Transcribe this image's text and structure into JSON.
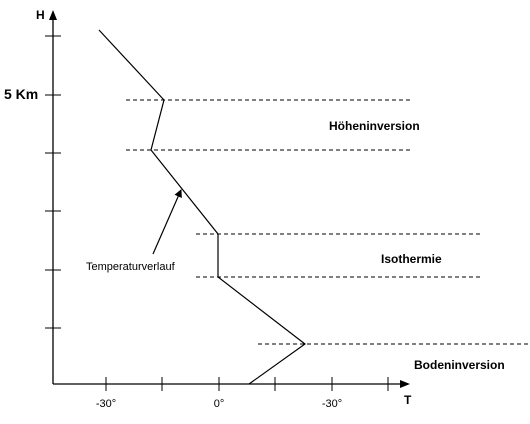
{
  "axes": {
    "y_label": "H",
    "x_label": "T",
    "height_marker": "5 Km",
    "x_ticks": [
      "-30°",
      "0°",
      "-30°"
    ]
  },
  "zones": {
    "upper": "Höheninversion",
    "middle": "Isothermie",
    "ground": "Bodeninversion"
  },
  "curve": {
    "label": "Temperaturverlauf"
  }
}
